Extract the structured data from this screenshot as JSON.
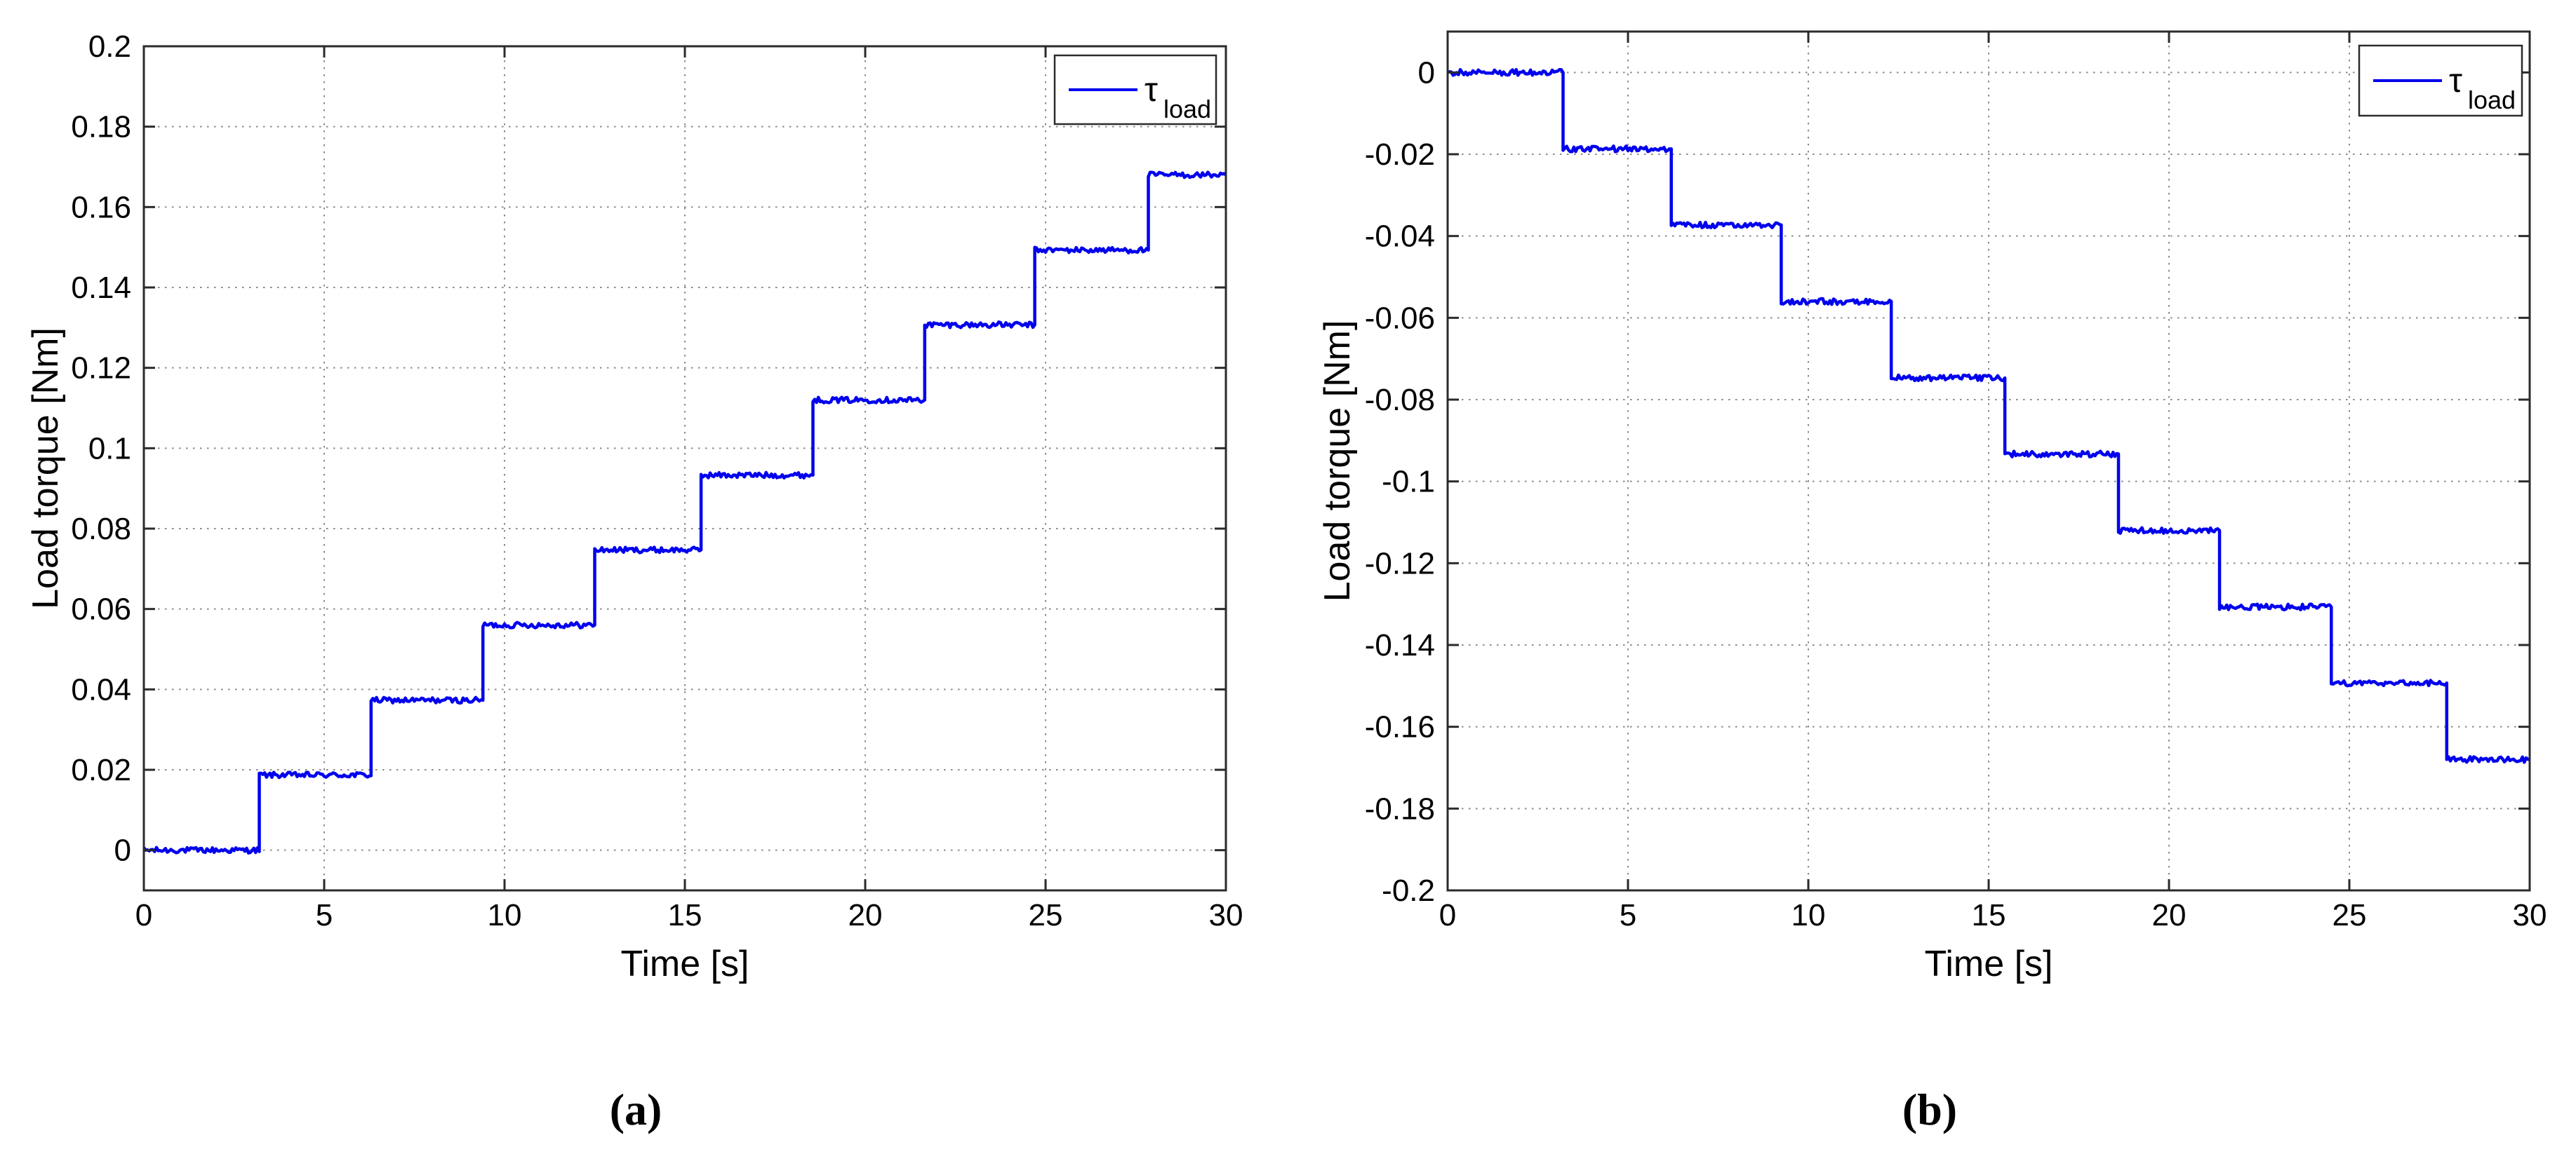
{
  "figure": {
    "caption_a": "(a)",
    "caption_b": "(b)",
    "background_color": "#ffffff",
    "line_color": "#0000ee",
    "grid_color": "#8a8a8a",
    "axes_color": "#2b2b2b"
  },
  "chart_data": [
    {
      "panel": "a",
      "type": "line",
      "line_style": "noisy staircase, increasing",
      "title": "",
      "xlabel": "Time [s]",
      "ylabel": "Load torque [Nm]",
      "legend": {
        "symbol": "τ",
        "subscript": "load",
        "color": "#0000ee",
        "position": "top-right"
      },
      "grid": true,
      "xlim": [
        0,
        30
      ],
      "ylim": [
        -0.01,
        0.2
      ],
      "xticks": [
        0,
        5,
        10,
        15,
        20,
        25,
        30
      ],
      "xtick_labels": [
        "0",
        "5",
        "10",
        "15",
        "20",
        "25",
        "30"
      ],
      "yticks": [
        0,
        0.02,
        0.04,
        0.06,
        0.08,
        0.1,
        0.12,
        0.14,
        0.16,
        0.18,
        0.2
      ],
      "ytick_labels": [
        "0",
        "0.02",
        "0.04",
        "0.06",
        "0.08",
        "0.1",
        "0.12",
        "0.14",
        "0.16",
        "0.18",
        "0.2"
      ],
      "step_times": [
        3.2,
        6.3,
        9.4,
        12.5,
        15.45,
        18.55,
        21.65,
        24.7,
        27.85
      ],
      "step_values": [
        0,
        0.0187,
        0.0373,
        0.056,
        0.0747,
        0.0933,
        0.112,
        0.1307,
        0.1493,
        0.168
      ],
      "noise_amplitude": 0.0007
    },
    {
      "panel": "b",
      "type": "line",
      "line_style": "noisy staircase, decreasing",
      "title": "",
      "xlabel": "Time [s]",
      "ylabel": "Load torque [Nm]",
      "legend": {
        "symbol": "τ",
        "subscript": "load",
        "color": "#0000ee",
        "position": "top-right"
      },
      "grid": true,
      "xlim": [
        0,
        30
      ],
      "ylim": [
        -0.2,
        0.01
      ],
      "xticks": [
        0,
        5,
        10,
        15,
        20,
        25,
        30
      ],
      "xtick_labels": [
        "0",
        "5",
        "10",
        "15",
        "20",
        "25",
        "30"
      ],
      "yticks": [
        -0.2,
        -0.18,
        -0.16,
        -0.14,
        -0.12,
        -0.1,
        -0.08,
        -0.06,
        -0.04,
        -0.02,
        0
      ],
      "ytick_labels": [
        "-0.2",
        "-0.18",
        "-0.16",
        "-0.14",
        "-0.12",
        "-0.1",
        "-0.08",
        "-0.06",
        "-0.04",
        "-0.02",
        "0"
      ],
      "step_times": [
        3.2,
        6.2,
        9.25,
        12.3,
        15.45,
        18.6,
        21.4,
        24.5,
        27.7
      ],
      "step_values": [
        0,
        -0.0187,
        -0.0373,
        -0.056,
        -0.0747,
        -0.0933,
        -0.112,
        -0.1307,
        -0.1493,
        -0.168
      ],
      "noise_amplitude": 0.0007
    }
  ]
}
